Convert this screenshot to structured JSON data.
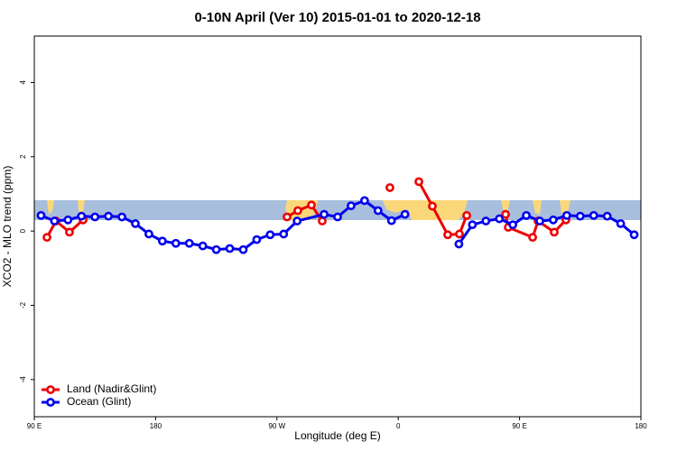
{
  "chart_data": {
    "type": "line",
    "title": "0-10N April (Ver 10)   2015-01-01 to 2020-12-18",
    "x_label": "Longitude (deg E)",
    "y_label": "XCO2 - MLO trend (ppm)",
    "xlim": [
      90,
      540
    ],
    "xticks": [
      {
        "value": 90,
        "label": "90 E"
      },
      {
        "value": 180,
        "label": "180"
      },
      {
        "value": 270,
        "label": "90 W"
      },
      {
        "value": 360,
        "label": "0"
      },
      {
        "value": 450,
        "label": "90 E"
      },
      {
        "value": 540,
        "label": "180"
      }
    ],
    "ylim": [
      -5,
      5.25
    ],
    "yticks": [
      -4,
      -2,
      0,
      2,
      4
    ],
    "legend": "bottomleft",
    "series": [
      {
        "name": "Land (Nadir&Glint)",
        "color": "#ee0000",
        "x": [
          99.4,
          106.1,
          116.1,
          126.2,
          null,
          277.5,
          285.5,
          295.6,
          303.6,
          null,
          353.8,
          null,
          375.3,
          385.3,
          396.7,
          405.4,
          410.8,
          null,
          439.6,
          441.6,
          459.7,
          463.7,
          475.7,
          484.4
        ],
        "values": [
          -0.17,
          0.27,
          -0.03,
          0.3,
          null,
          0.38,
          0.55,
          0.7,
          0.27,
          null,
          1.17,
          null,
          1.33,
          0.67,
          -0.1,
          -0.08,
          0.42,
          null,
          0.45,
          0.1,
          -0.17,
          0.27,
          -0.03,
          0.3
        ]
      },
      {
        "name": "Ocean (Glint)",
        "color": "#0000ee",
        "x": [
          95,
          105,
          115,
          125,
          135,
          145,
          155,
          165,
          175,
          185,
          195,
          205,
          215,
          225,
          235,
          245,
          255,
          265,
          275,
          285,
          305,
          315,
          325,
          335,
          345,
          355,
          365,
          null,
          405,
          415,
          425,
          435,
          445,
          455,
          465,
          475,
          485,
          495,
          505,
          515,
          525,
          535
        ],
        "values": [
          0.42,
          0.27,
          0.3,
          0.4,
          0.38,
          0.4,
          0.38,
          0.2,
          -0.08,
          -0.27,
          -0.33,
          -0.33,
          -0.4,
          -0.5,
          -0.47,
          -0.5,
          -0.23,
          -0.1,
          -0.08,
          0.27,
          0.45,
          0.38,
          0.68,
          0.82,
          0.55,
          0.28,
          0.45,
          null,
          -0.35,
          0.17,
          0.27,
          0.33,
          0.17,
          0.42,
          0.27,
          0.3,
          0.42,
          0.4,
          0.42,
          0.4,
          0.2,
          -0.1
        ]
      }
    ]
  }
}
